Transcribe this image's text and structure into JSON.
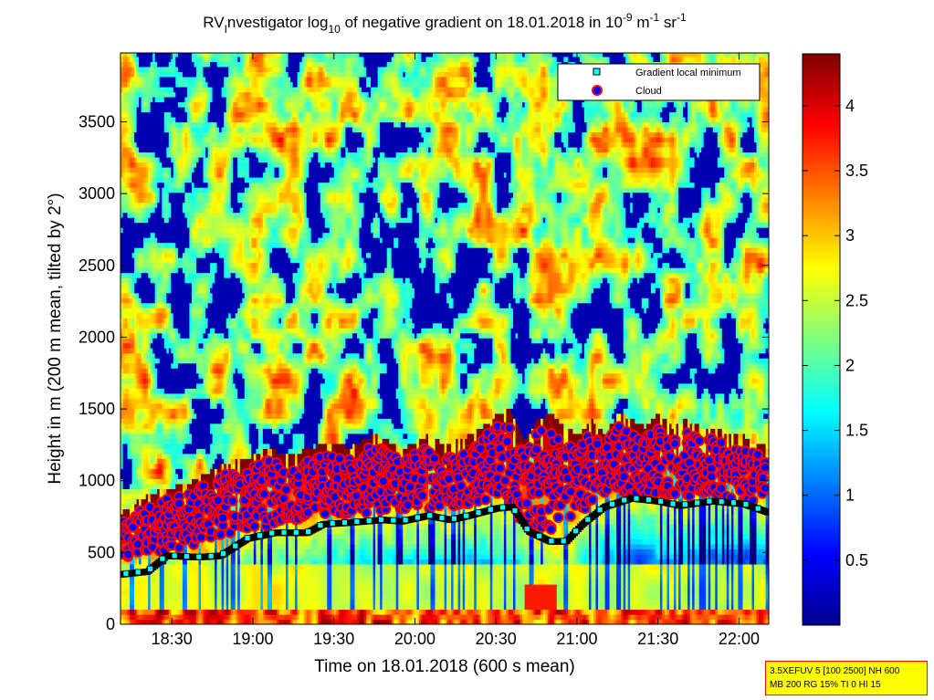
{
  "chart_data": {
    "type": "heatmap",
    "title": {
      "prefix": "RV",
      "prefix_sub": "I",
      "text1": "nvestigator log",
      "log_base": "10",
      "text2": " of negative gradient on 18.01.2018 in 10",
      "exp1": "-9",
      "unit1": " m",
      "exp2": "-1",
      "unit2": " sr",
      "exp3": "-1"
    },
    "xlabel": "Time on 18.01.2018 (600 s mean)",
    "ylabel": "Height in m (200 m mean, tilted by 2°)",
    "x_ticks": [
      "18:30",
      "19:00",
      "19:30",
      "20:00",
      "20:30",
      "21:00",
      "21:30",
      "22:00"
    ],
    "x_tick_minutes": [
      1110,
      1140,
      1170,
      1200,
      1230,
      1260,
      1290,
      1320
    ],
    "xlim_minutes": [
      1091,
      1331
    ],
    "y_ticks": [
      0,
      500,
      1000,
      1500,
      2000,
      2500,
      3000,
      3500
    ],
    "ylim": [
      0,
      3980
    ],
    "colorbar": {
      "ticks": [
        0.5,
        1,
        1.5,
        2,
        2.5,
        3,
        3.5,
        4
      ],
      "tick_labels": [
        "0.5",
        "1",
        "1.5",
        "2",
        "2.5",
        "3",
        "3.5",
        "4"
      ],
      "range": [
        0,
        4.4
      ],
      "colormap": "jet"
    },
    "legend": {
      "placement": "top-right",
      "entries": [
        {
          "label": "Gradient local minimum",
          "marker": "square",
          "color": "#00ffff"
        },
        {
          "label": "Cloud",
          "marker": "circle",
          "color": "#0000ff",
          "edge": "#ff0000"
        }
      ]
    },
    "gradient_local_minimum": {
      "t": [
        1091,
        1101,
        1108,
        1120,
        1128,
        1138,
        1148,
        1160,
        1166,
        1175,
        1188,
        1195,
        1205,
        1213,
        1220,
        1230,
        1236,
        1242,
        1250,
        1256,
        1262,
        1270,
        1280,
        1290,
        1298,
        1310,
        1322,
        1331
      ],
      "h": [
        350,
        370,
        480,
        470,
        480,
        600,
        640,
        640,
        700,
        710,
        730,
        720,
        760,
        730,
        760,
        810,
        820,
        650,
        580,
        580,
        700,
        820,
        880,
        860,
        830,
        860,
        840,
        780
      ]
    },
    "cloud": {
      "t": [
        1091,
        1095,
        1100,
        1105,
        1110,
        1115,
        1120,
        1125,
        1130,
        1135,
        1140,
        1145,
        1150,
        1155,
        1160,
        1165,
        1170,
        1175,
        1180,
        1185,
        1190,
        1195,
        1200,
        1205,
        1210,
        1215,
        1220,
        1225,
        1230,
        1235,
        1240,
        1245,
        1250,
        1255,
        1260,
        1265,
        1270,
        1275,
        1280,
        1285,
        1290,
        1295,
        1300,
        1305,
        1310,
        1315,
        1320,
        1325,
        1331
      ],
      "h_min": [
        380,
        420,
        480,
        500,
        520,
        540,
        560,
        600,
        620,
        640,
        660,
        680,
        700,
        720,
        740,
        760,
        780,
        760,
        760,
        780,
        800,
        780,
        800,
        800,
        820,
        820,
        840,
        850,
        830,
        820,
        700,
        650,
        650,
        720,
        780,
        820,
        900,
        920,
        900,
        900,
        900,
        900,
        880,
        880,
        880,
        880,
        860,
        820,
        820
      ],
      "h_max": [
        700,
        760,
        820,
        860,
        880,
        900,
        960,
        1000,
        1050,
        1080,
        1100,
        1150,
        1120,
        1100,
        1150,
        1180,
        1200,
        1150,
        1200,
        1250,
        1200,
        1150,
        1200,
        1250,
        1180,
        1200,
        1250,
        1300,
        1400,
        1420,
        1200,
        1350,
        1400,
        1300,
        1250,
        1350,
        1250,
        1400,
        1350,
        1300,
        1400,
        1300,
        1350,
        1300,
        1300,
        1250,
        1250,
        1200,
        1150
      ]
    }
  },
  "info_box": {
    "line1": "3.5XEFUV 5 [100 2500] NH 600",
    "line2": "MB 200 RG 15% TI 0 HI 15"
  }
}
